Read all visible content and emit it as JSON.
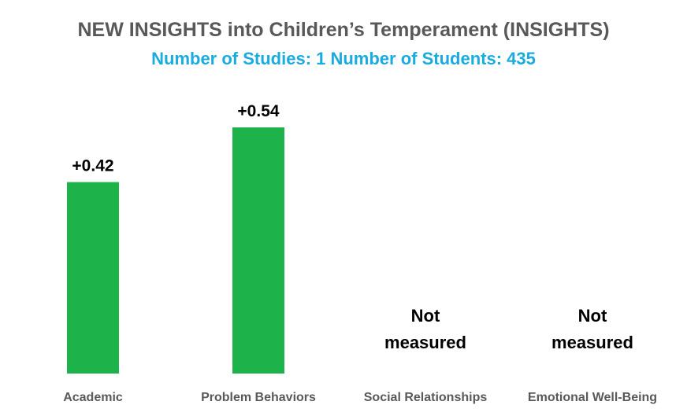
{
  "header": {
    "title": "NEW INSIGHTS into Children’s Temperament (INSIGHTS)",
    "subtitle": "Number of Studies: 1 Number of Students: 435"
  },
  "colors": {
    "bar": "#1db34a",
    "title": "#595959",
    "subtitle": "#1aabdf",
    "value_label": "#000000",
    "category_label": "#595959"
  },
  "chart_data": {
    "type": "bar",
    "title": "NEW INSIGHTS into Children’s Temperament (INSIGHTS)",
    "subtitle": "Number of Studies: 1 Number of Students: 435",
    "categories": [
      "Academic",
      "Problem Behaviors",
      "Social Relationships",
      "Emotional Well-Being"
    ],
    "values": [
      0.42,
      0.54,
      null,
      null
    ],
    "value_labels": [
      "+0.42",
      "+0.54",
      "Not measured",
      "Not measured"
    ],
    "xlabel": "",
    "ylabel": "",
    "ylim": [
      0,
      0.54
    ],
    "grid": false,
    "legend": "none"
  }
}
